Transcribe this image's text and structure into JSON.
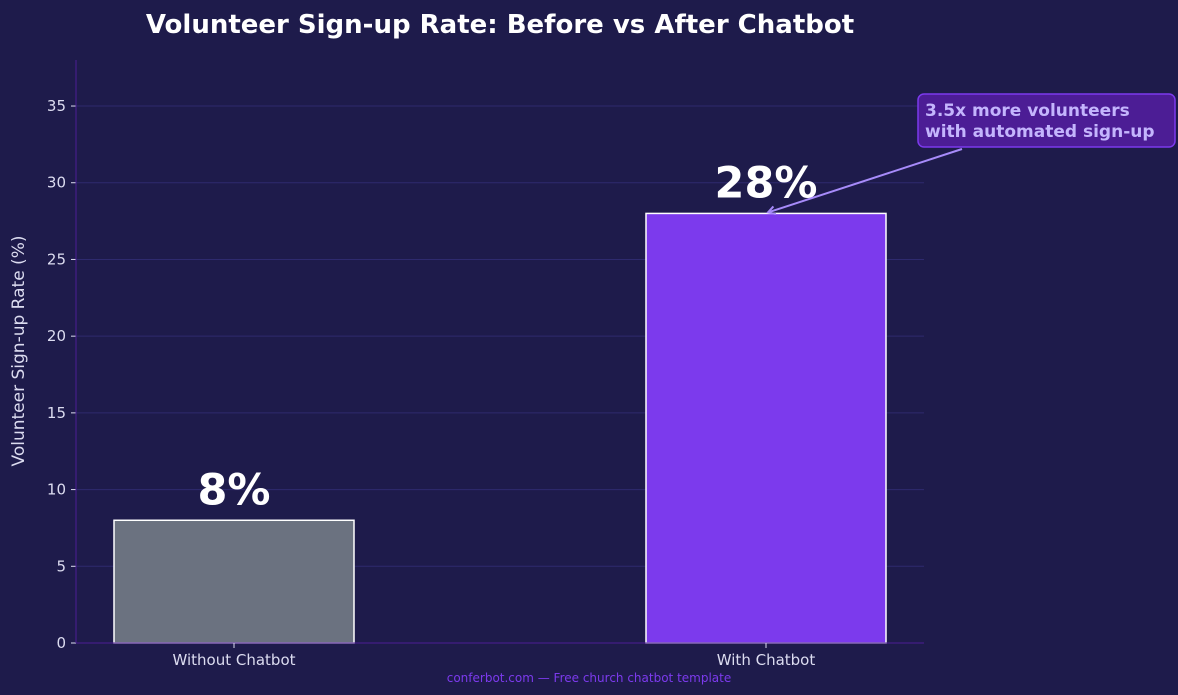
{
  "chart_data": {
    "type": "bar",
    "title": "Volunteer Sign-up Rate: Before vs After Chatbot",
    "xlabel": "",
    "ylabel": "Volunteer Sign-up Rate (%)",
    "categories": [
      "Without Chatbot",
      "With Chatbot"
    ],
    "values": [
      8,
      28
    ],
    "value_labels": [
      "8%",
      "28%"
    ],
    "ylim": [
      0,
      38
    ],
    "yticks": [
      0,
      5,
      10,
      15,
      20,
      25,
      30,
      35
    ],
    "grid": true,
    "legend": "none",
    "bar_colors": [
      "#6b7280",
      "#7c3aed"
    ],
    "annotation": {
      "lines": [
        "3.5x more volunteers",
        "with automated sign-up"
      ],
      "points_to_category": "With Chatbot",
      "points_to_value": 28
    }
  },
  "footer": {
    "text": "conferbot.com — Free church chatbot template"
  },
  "colors": {
    "background": "#1e1b4b",
    "grid": "#2e2a6e",
    "axis": "#4c1d95",
    "bar_edge": "#ffffff",
    "annotation_fill": "#4c1d95",
    "annotation_edge": "#7c3aed",
    "annotation_arrow": "#a78bfa"
  }
}
